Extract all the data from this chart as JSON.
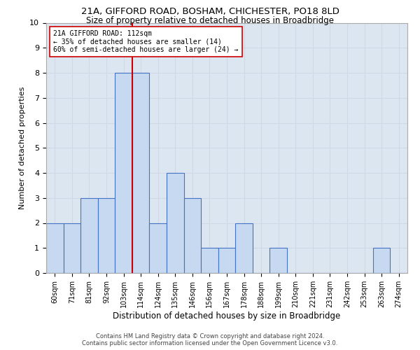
{
  "title_line1": "21A, GIFFORD ROAD, BOSHAM, CHICHESTER, PO18 8LD",
  "title_line2": "Size of property relative to detached houses in Broadbridge",
  "xlabel": "Distribution of detached houses by size in Broadbridge",
  "ylabel": "Number of detached properties",
  "categories": [
    "60sqm",
    "71sqm",
    "81sqm",
    "92sqm",
    "103sqm",
    "114sqm",
    "124sqm",
    "135sqm",
    "146sqm",
    "156sqm",
    "167sqm",
    "178sqm",
    "188sqm",
    "199sqm",
    "210sqm",
    "221sqm",
    "231sqm",
    "242sqm",
    "253sqm",
    "263sqm",
    "274sqm"
  ],
  "values": [
    2,
    2,
    3,
    3,
    8,
    8,
    2,
    4,
    3,
    1,
    1,
    2,
    0,
    1,
    0,
    0,
    0,
    0,
    0,
    1,
    0
  ],
  "bar_color": "#c6d9f1",
  "bar_edge_color": "#4472c4",
  "property_line_x": 4.5,
  "annotation_text": "21A GIFFORD ROAD: 112sqm\n← 35% of detached houses are smaller (14)\n60% of semi-detached houses are larger (24) →",
  "annotation_box_color": "#ffffff",
  "annotation_box_edge_color": "#cc0000",
  "vline_color": "#cc0000",
  "ylim": [
    0,
    10
  ],
  "yticks": [
    0,
    1,
    2,
    3,
    4,
    5,
    6,
    7,
    8,
    9,
    10
  ],
  "footer_line1": "Contains HM Land Registry data © Crown copyright and database right 2024.",
  "footer_line2": "Contains public sector information licensed under the Open Government Licence v3.0.",
  "grid_color": "#d0d8e8",
  "background_color": "#dce6f1"
}
